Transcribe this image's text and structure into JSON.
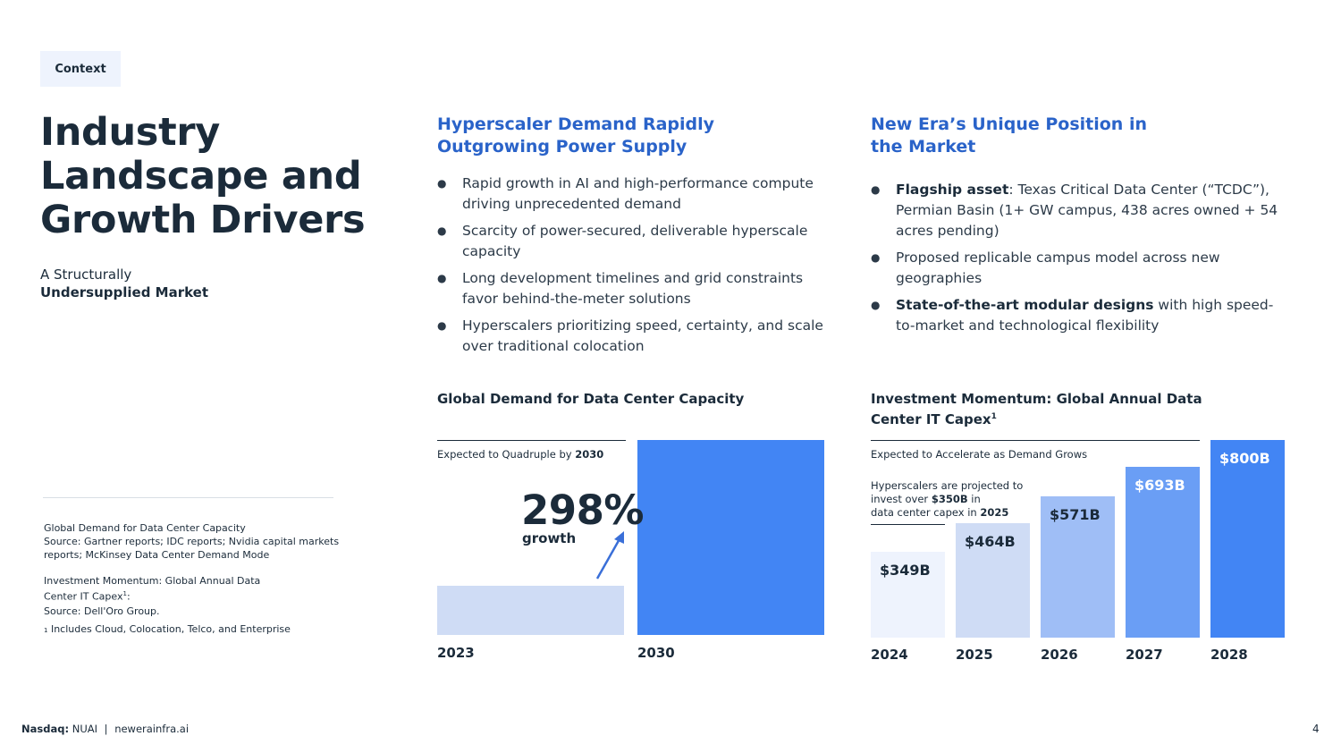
{
  "tag": "Context",
  "title_lines": [
    "Industry",
    "Landscape and",
    "Growth Drivers"
  ],
  "subtitle_line1": "A Structurally",
  "subtitle_line2": "Undersupplied Market",
  "sources": {
    "s1_title": "Global Demand for Data Center Capacity",
    "s1_line1": "Source: Gartner reports; IDC reports; Nvidia capital markets",
    "s1_line2": "reports; McKinsey Data Center Demand Mode",
    "s2_title": "Investment Momentum: Global Annual Data",
    "s2_line2": "Center IT Capex",
    "s2_sup": "1",
    "s2_colon": ":",
    "s2_source": "Source: Dell'Oro Group.",
    "s2_footnote_marker": "1",
    "s2_footnote": "Includes Cloud, Colocation, Telco, and Enterprise"
  },
  "col1": {
    "heading_line1": "Hyperscaler Demand Rapidly",
    "heading_line2": "Outgrowing Power Supply",
    "bullets": [
      "Rapid growth in AI and high-performance compute driving unprecedented demand",
      "Scarcity of power-secured, deliverable hyperscale capacity",
      "Long development timelines and grid constraints favor behind-the-meter solutions",
      "Hyperscalers prioritizing speed, certainty, and scale over traditional colocation"
    ]
  },
  "col2": {
    "heading_line1": "New Era’s Unique Position in",
    "heading_line2": "the Market",
    "b1_bold": "Flagship asset",
    "b1_rest": ": Texas Critical Data Center (“TCDC”), Permian Basin (1+ GW campus, 438 acres owned + 54 acres pending)",
    "b2": "Proposed replicable campus model across new geographies",
    "b3_bold": "State-of-the-art modular designs",
    "b3_rest": " with high speed-to-market and technological flexibility"
  },
  "chart_data": [
    {
      "type": "bar",
      "title": "Global Demand for Data Center Capacity",
      "note_prefix": "Expected to Quadruple by ",
      "note_bold": "2030",
      "categories": [
        "2023",
        "2030"
      ],
      "values": [
        1,
        3.98
      ],
      "annotation_value": "298%",
      "annotation_label": "growth",
      "colors": [
        "#cfdcf5",
        "#4285f4"
      ]
    },
    {
      "type": "bar",
      "title_line1": "Investment Momentum: Global Annual Data",
      "title_line2": "Center IT Capex",
      "title_sup": "1",
      "note": "Expected to Accelerate as Demand Grows",
      "callout_l1": "Hyperscalers are projected to",
      "callout_l2_prefix": "invest over ",
      "callout_l2_bold": "$350B",
      "callout_l2_suffix": " in",
      "callout_l3_prefix": "data center capex in ",
      "callout_l3_bold": "2025",
      "categories": [
        "2024",
        "2025",
        "2026",
        "2027",
        "2028"
      ],
      "values": [
        349,
        464,
        571,
        693,
        800
      ],
      "labels": [
        "$349B",
        "$464B",
        "$571B",
        "$693B",
        "$800B"
      ],
      "unit": "B USD",
      "colors": [
        "#eef3fd",
        "#cfdcf5",
        "#9fbef6",
        "#6a9ef5",
        "#4285f4"
      ],
      "label_colors": [
        "#1b2b3a",
        "#1b2b3a",
        "#1b2b3a",
        "#ffffff",
        "#ffffff"
      ]
    }
  ],
  "footer": {
    "exchange_label": "Nasdaq:",
    "ticker": "NUAI",
    "separator": "|",
    "website": "newerainfra.ai",
    "page_number": "4"
  },
  "colors": {
    "heading_blue": "#2a63c9",
    "dark_text": "#1b2b3a",
    "accent_blue": "#4285f4",
    "arrow_blue": "#3a6fd8"
  }
}
